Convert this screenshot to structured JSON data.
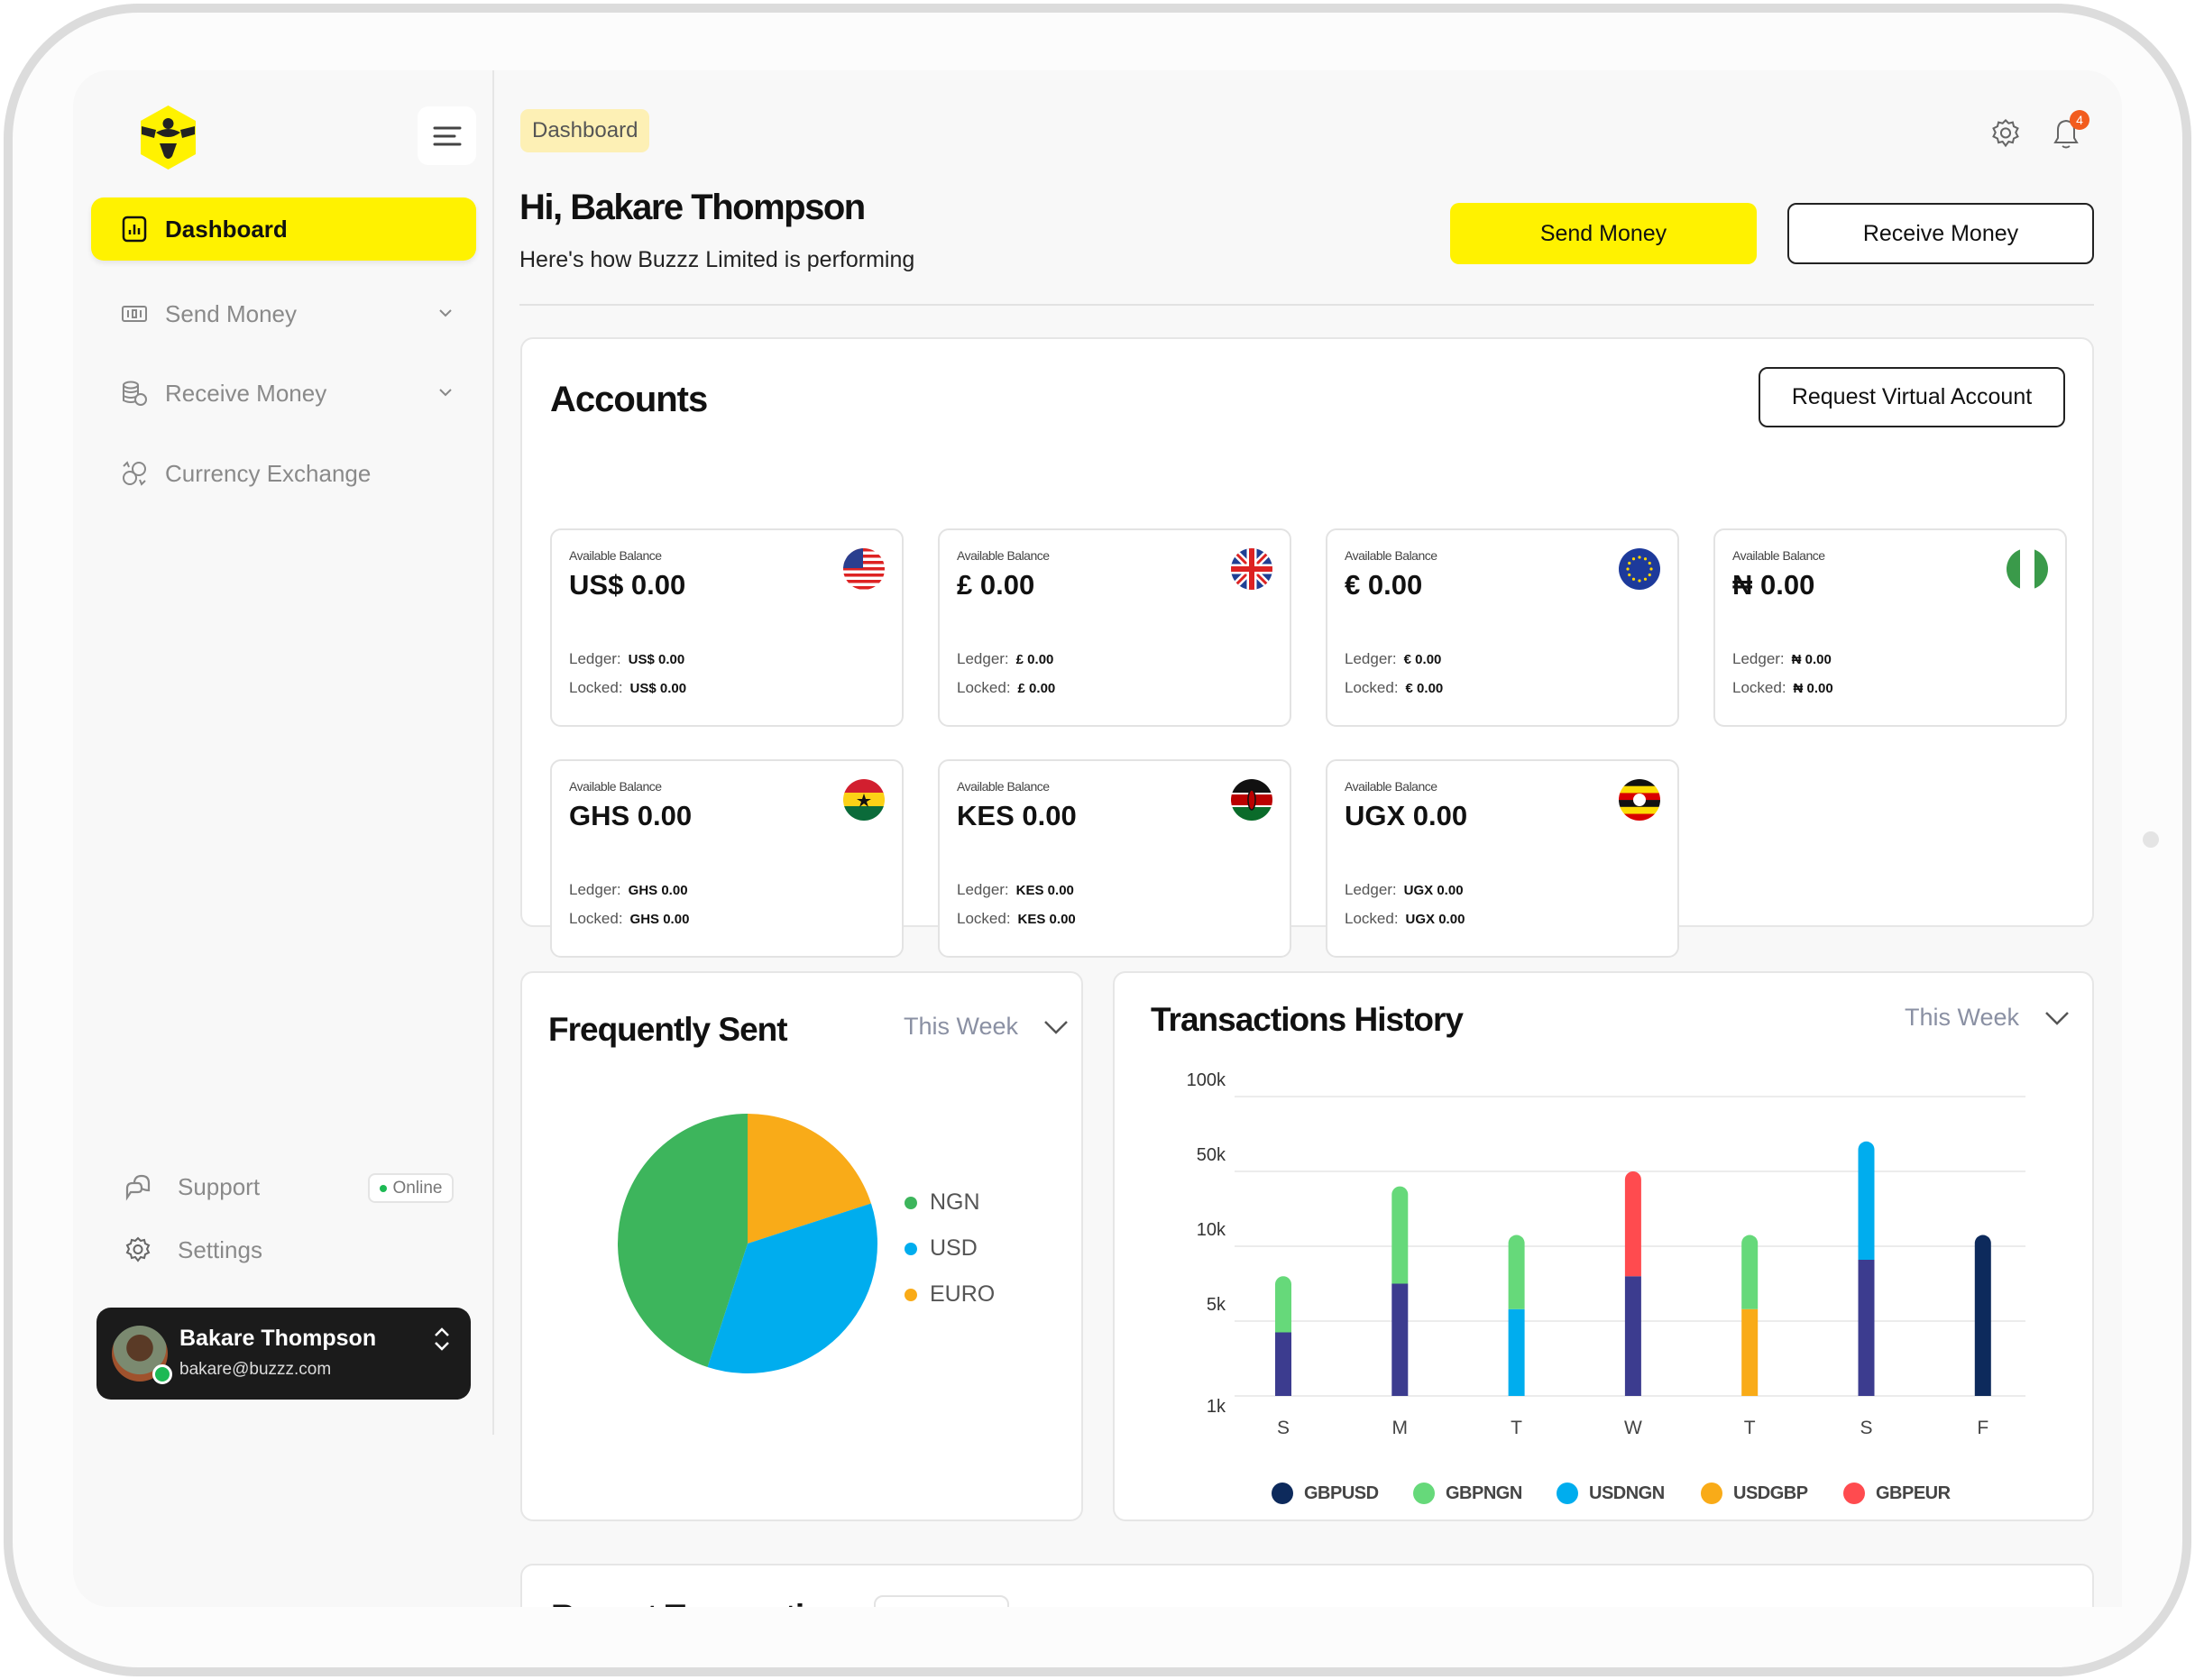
{
  "sidebar": {
    "items": [
      {
        "label": "Dashboard",
        "icon": "bar-chart-icon",
        "active": true
      },
      {
        "label": "Send Money",
        "icon": "money-icon",
        "expandable": true
      },
      {
        "label": "Receive Money",
        "icon": "coins-icon",
        "expandable": true
      },
      {
        "label": "Currency Exchange",
        "icon": "exchange-icon"
      }
    ],
    "support": {
      "label": "Support",
      "status": "Online"
    },
    "settings": {
      "label": "Settings"
    },
    "user": {
      "name": "Bakare Thompson",
      "email": "bakare@buzzz.com"
    }
  },
  "header": {
    "breadcrumb": "Dashboard",
    "greeting": "Hi, Bakare Thompson",
    "subtitle": "Here's how Buzzz Limited is performing",
    "notification_count": "4",
    "send_money": "Send Money",
    "receive_money": "Receive Money"
  },
  "accounts": {
    "title": "Accounts",
    "request_button": "Request Virtual Account",
    "balance_label": "Available Balance",
    "ledger_label": "Ledger:",
    "locked_label": "Locked:",
    "items": [
      {
        "flag": "us-flag",
        "balance": "US$ 0.00",
        "ledger": "US$ 0.00",
        "locked": "US$ 0.00"
      },
      {
        "flag": "uk-flag",
        "balance": "£ 0.00",
        "ledger": "£ 0.00",
        "locked": "£ 0.00"
      },
      {
        "flag": "eu-flag",
        "balance": "€ 0.00",
        "ledger": "€ 0.00",
        "locked": "€ 0.00"
      },
      {
        "flag": "ng-flag",
        "balance": "₦ 0.00",
        "ledger": "₦ 0.00",
        "locked": "₦ 0.00"
      },
      {
        "flag": "gh-flag",
        "balance": "GHS 0.00",
        "ledger": "GHS 0.00",
        "locked": "GHS 0.00"
      },
      {
        "flag": "ke-flag",
        "balance": "KES 0.00",
        "ledger": "KES 0.00",
        "locked": "KES 0.00"
      },
      {
        "flag": "ug-flag",
        "balance": "UGX 0.00",
        "ledger": "UGX 0.00",
        "locked": "UGX 0.00"
      }
    ]
  },
  "colors": {
    "accent": "#fff200",
    "purple_segment": "#3c3c8f"
  },
  "chart_data": [
    {
      "type": "pie",
      "title": "Frequently Sent",
      "period": "This Week",
      "slices": [
        {
          "label": "EURO",
          "value": 20,
          "color": "#f9ab18"
        },
        {
          "label": "USD",
          "value": 35,
          "color": "#00adee"
        },
        {
          "label": "NGN",
          "value": 45,
          "color": "#3db55c"
        }
      ],
      "legend_order": [
        "NGN",
        "USD",
        "EURO"
      ]
    },
    {
      "type": "bar",
      "stacked": true,
      "title": "Transactions History",
      "period": "This Week",
      "y_ticks": [
        "1k",
        "5k",
        "10k",
        "50k",
        "100k"
      ],
      "y_tick_values": [
        1,
        5,
        10,
        50,
        100
      ],
      "categories": [
        "S",
        "M",
        "T",
        "W",
        "T",
        "S",
        "F"
      ],
      "series": [
        {
          "name": "GBPUSD",
          "color": "#0d2a5c"
        },
        {
          "name": "GBPNGN",
          "color": "#66d97a"
        },
        {
          "name": "USDNGN",
          "color": "#00adee"
        },
        {
          "name": "USDGBP",
          "color": "#f9ab18"
        },
        {
          "name": "GBPEUR",
          "color": "#ff4b4f"
        }
      ],
      "stacks_k": [
        [
          {
            "series": "base",
            "top": 4.4
          },
          {
            "series": "GBPNGN",
            "top": 8
          }
        ],
        [
          {
            "series": "base",
            "top": 7.5
          },
          {
            "series": "GBPNGN",
            "top": 42
          }
        ],
        [
          {
            "series": "USDNGN",
            "top": 5.8
          },
          {
            "series": "GBPNGN",
            "top": 16
          }
        ],
        [
          {
            "series": "base",
            "top": 8
          },
          {
            "series": "GBPEUR",
            "top": 50
          }
        ],
        [
          {
            "series": "USDGBP",
            "top": 5.8
          },
          {
            "series": "GBPNGN",
            "top": 16
          }
        ],
        [
          {
            "series": "base",
            "top": 9.1
          },
          {
            "series": "USDNGN",
            "top": 70
          }
        ],
        [
          {
            "series": "GBPUSD",
            "top": 16
          }
        ]
      ]
    }
  ],
  "recent": {
    "title": "Recent Transactions"
  }
}
